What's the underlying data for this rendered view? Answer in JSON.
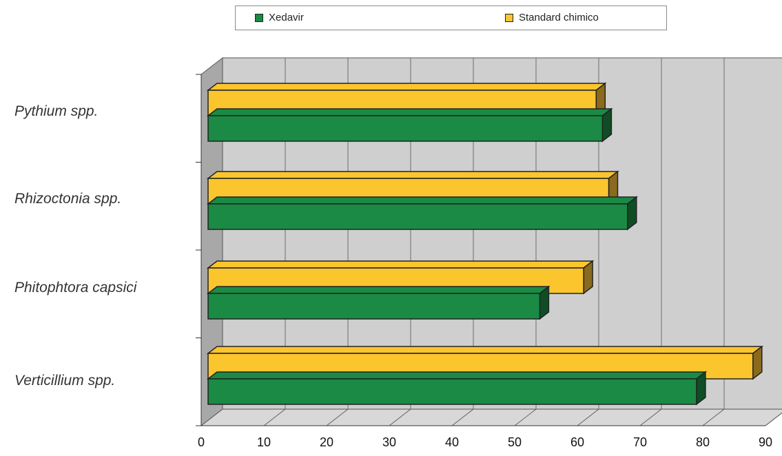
{
  "chart_data": {
    "type": "bar",
    "orientation": "horizontal",
    "style": "3d",
    "categories": [
      "Pythium spp.",
      "Rhizoctonia spp.",
      "Phitophtora capsici",
      "Verticillium spp."
    ],
    "series": [
      {
        "name": "Xedavir",
        "values": [
          64,
          68,
          54,
          79
        ]
      },
      {
        "name": "Standard chimico",
        "values": [
          63,
          65,
          61,
          88
        ]
      }
    ],
    "xlim": [
      0,
      90
    ],
    "xticks": [
      "0",
      "10",
      "20",
      "30",
      "40",
      "50",
      "60",
      "70",
      "80",
      "90"
    ],
    "legend_position": "top",
    "grid": true
  },
  "colors": {
    "xedavir": "#1a8a45",
    "xedavir_dark": "#0f4d25",
    "standard": "#fbc52e",
    "standard_dark": "#8a6a1c",
    "wall": "#cfcfcf",
    "side_wall": "#a8a8a8",
    "floor": "#d8d8d8"
  }
}
